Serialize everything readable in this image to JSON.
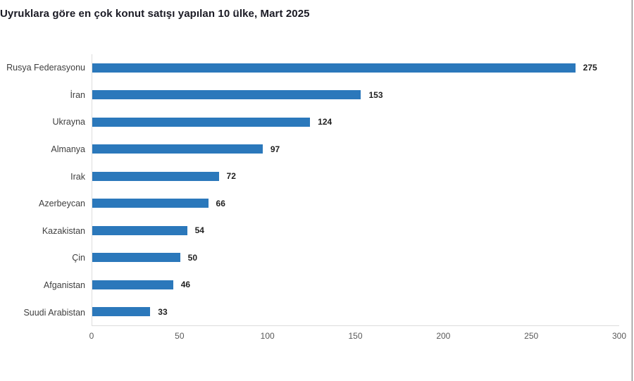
{
  "chart_data": {
    "type": "bar",
    "orientation": "horizontal",
    "title": "Uyruklara göre en çok konut satışı yapılan 10 ülke, Mart 2025",
    "categories": [
      "Rusya Federasyonu",
      "İran",
      "Ukrayna",
      "Almanya",
      "Irak",
      "Azerbeycan",
      "Kazakistan",
      "Çin",
      "Afganistan",
      "Suudi Arabistan"
    ],
    "values": [
      275,
      153,
      124,
      97,
      72,
      66,
      54,
      50,
      46,
      33
    ],
    "xlabel": "",
    "ylabel": "",
    "xlim": [
      0,
      300
    ],
    "x_ticks": [
      0,
      50,
      100,
      150,
      200,
      250,
      300
    ],
    "grid": false,
    "legend": false,
    "value_labels_shown": true,
    "colors": {
      "bar": "#2b78bb",
      "title_text": "#1a1a24",
      "category_text": "#3f3f3f",
      "tick_text": "#595959",
      "value_text": "#1f1f1f",
      "axis_line": "#dcdcdc",
      "background": "#ffffff",
      "window_edge_dark": "#8c8c8c",
      "window_edge_light": "#d9d9d9"
    }
  }
}
